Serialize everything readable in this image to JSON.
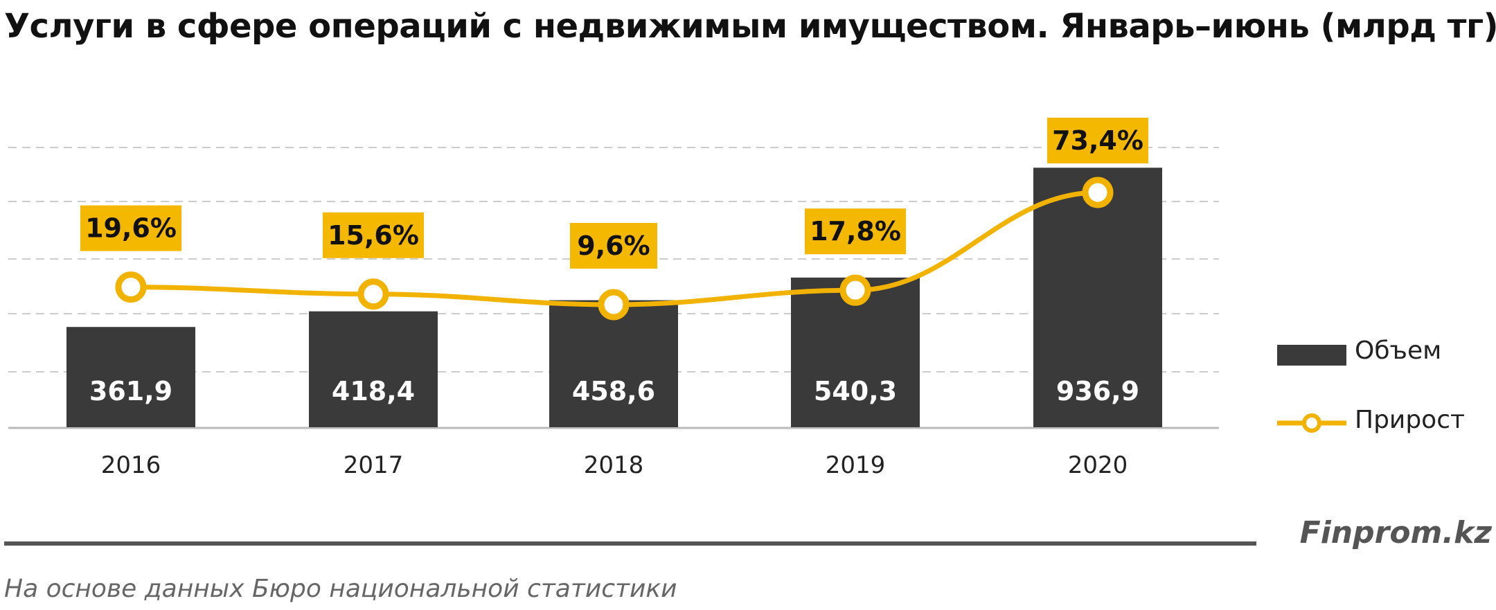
{
  "title": "Услуги в сфере операций с недвижимым имуществом. Январь–июнь (млрд тг)",
  "legend": {
    "bar_label": "Объем",
    "line_label": "Прирост"
  },
  "brand": "Finprom.kz",
  "source": "На основе данных  Бюро национальной  статистики",
  "colors": {
    "bar": "#3a3a3a",
    "line": "#f2b300",
    "label_box": "#f5b800",
    "grid": "#cccccc",
    "axis": "#bbbbbb"
  },
  "chart_data": {
    "type": "bar",
    "categories": [
      "2016",
      "2017",
      "2018",
      "2019",
      "2020"
    ],
    "series": [
      {
        "name": "Объем",
        "type": "bar",
        "values": [
          361.9,
          418.4,
          458.6,
          540.3,
          936.9
        ],
        "labels": [
          "361,9",
          "418,4",
          "458,6",
          "540,3",
          "936,9"
        ]
      },
      {
        "name": "Прирост",
        "type": "line",
        "values": [
          19.6,
          15.6,
          9.6,
          17.8,
          73.4
        ],
        "labels": [
          "19,6%",
          "15,6%",
          "9,6%",
          "17,8%",
          "73,4%"
        ]
      }
    ],
    "ylim_bar": [
      0,
      1050
    ],
    "grid": true,
    "legend_position": "right"
  }
}
